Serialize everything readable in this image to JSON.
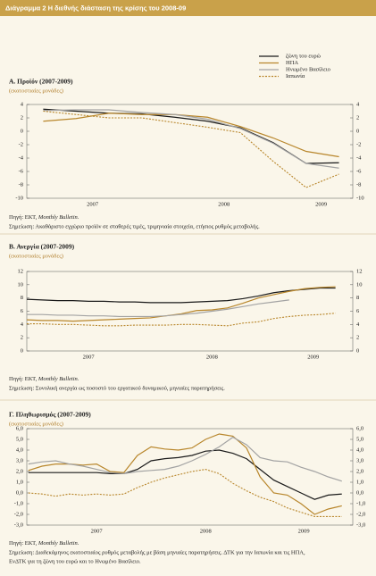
{
  "header": {
    "title": "Διάγραμμα 2  Η διεθνής διάσταση της κρίσης του 2008-09"
  },
  "chart_data": [
    {
      "type": "line",
      "title": "Α. Προϊόν (2007-2009)",
      "subtitle": "(εκατοστιαίες μονάδες)",
      "x": [
        2007.125,
        2007.375,
        2007.625,
        2007.875,
        2008.125,
        2008.375,
        2008.625,
        2008.875,
        2009.125,
        2009.375
      ],
      "xlim": [
        2007,
        2009.48
      ],
      "xticks": [
        {
          "value": 2007.5,
          "label": "2007"
        },
        {
          "value": 2008.5,
          "label": "2008"
        },
        {
          "value": 2009.24,
          "label": "2009"
        }
      ],
      "ylim": [
        -10,
        4
      ],
      "yticks": [
        4,
        2,
        0,
        -2,
        -4,
        -6,
        -8,
        -10
      ],
      "mirror_yticks": true,
      "legend": "top-right",
      "series": [
        {
          "name": "ζώνη του ευρώ",
          "color": "#1a1a1a",
          "dash": "none",
          "values": [
            3.3,
            3.0,
            2.7,
            2.6,
            2.1,
            1.5,
            0.5,
            -1.7,
            -4.8,
            -4.7
          ]
        },
        {
          "name": "ΗΠΑ",
          "color": "#b8862b",
          "dash": "none",
          "values": [
            1.5,
            1.9,
            2.7,
            2.5,
            2.5,
            2.1,
            0.7,
            -1.0,
            -3.0,
            -3.8
          ]
        },
        {
          "name": "Ηνωμένο Βασίλειο",
          "color": "#a3a3a3",
          "dash": "none",
          "values": [
            3.1,
            3.2,
            3.2,
            2.8,
            2.5,
            1.8,
            0.4,
            -1.8,
            -4.8,
            -5.5
          ]
        },
        {
          "name": "Ιαπωνία",
          "color": "#b8862b",
          "dash": "2,1.5",
          "values": [
            3.0,
            2.5,
            2.0,
            2.0,
            1.3,
            0.6,
            -0.2,
            -4.5,
            -8.4,
            -6.4
          ]
        }
      ],
      "source": {
        "prefix": "Πηγή: ΕΚΤ,",
        "title": "Monthly Bulletin."
      },
      "note": [
        "Σημείωση: Ακαθάριστο εγχώριο προϊόν σε σταθερές τιμές, τριμηνιαία στοιχεία, ετήσιος ρυθμός μεταβολής."
      ]
    },
    {
      "type": "line",
      "title": "Β. Ανεργία (2007-2009)",
      "subtitle": "(εκατοστιαίες μονάδες)",
      "x": [
        2007,
        2007.125,
        2007.25,
        2007.375,
        2007.5,
        2007.625,
        2007.75,
        2007.875,
        2008,
        2008.125,
        2008.25,
        2008.375,
        2008.5,
        2008.625,
        2008.75,
        2008.875,
        2009,
        2009.125,
        2009.25,
        2009.375,
        2009.5
      ],
      "xlim": [
        2007,
        2009.64
      ],
      "xticks": [
        {
          "value": 2007.5,
          "label": "2007"
        },
        {
          "value": 2008.5,
          "label": "2008"
        },
        {
          "value": 2009.32,
          "label": "2009"
        }
      ],
      "ylim": [
        0,
        12
      ],
      "yticks": [
        12,
        10,
        8,
        6,
        4,
        2,
        0
      ],
      "mirror_yticks": true,
      "series": [
        {
          "color": "#1a1a1a",
          "dash": "none",
          "values": [
            7.8,
            7.7,
            7.6,
            7.6,
            7.5,
            7.5,
            7.4,
            7.4,
            7.3,
            7.3,
            7.3,
            7.4,
            7.5,
            7.6,
            7.9,
            8.3,
            8.8,
            9.1,
            9.3,
            9.5,
            9.5
          ]
        },
        {
          "color": "#b8862b",
          "dash": "none",
          "values": [
            4.7,
            4.6,
            4.6,
            4.5,
            4.6,
            4.7,
            4.8,
            4.9,
            5.0,
            5.3,
            5.6,
            6.1,
            6.2,
            6.5,
            7.2,
            8.0,
            8.5,
            9.0,
            9.4,
            9.6,
            9.7
          ]
        },
        {
          "color": "#a3a3a3",
          "dash": "none",
          "values": [
            5.5,
            5.5,
            5.4,
            5.4,
            5.3,
            5.3,
            5.2,
            5.2,
            5.2,
            5.3,
            5.5,
            5.7,
            6.0,
            6.3,
            6.7,
            7.1,
            7.4,
            7.7,
            null,
            null,
            null
          ]
        },
        {
          "color": "#b8862b",
          "dash": "2,1.5",
          "values": [
            4.1,
            4.1,
            4.0,
            4.0,
            3.9,
            3.8,
            3.8,
            3.9,
            3.9,
            3.9,
            4.0,
            4.0,
            3.9,
            3.8,
            4.2,
            4.4,
            4.9,
            5.2,
            5.4,
            5.5,
            5.7
          ]
        }
      ],
      "source": {
        "prefix": "Πηγή: ΕΚΤ,",
        "title": "Monthly Bulletin."
      },
      "note": [
        "Σημείωση: Συνολική ανεργία ως ποσοστό του εργατικού δυναμικού, μηνιαίες παρατηρήσεις."
      ]
    },
    {
      "type": "line",
      "title": "Γ. Πληθωρισμός (2007-2009)",
      "subtitle": "(εκατοστιαίες μονάδες)",
      "x": [
        2006.875,
        2007,
        2007.125,
        2007.25,
        2007.375,
        2007.5,
        2007.625,
        2007.75,
        2007.875,
        2008,
        2008.125,
        2008.25,
        2008.375,
        2008.5,
        2008.625,
        2008.75,
        2008.875,
        2009,
        2009.125,
        2009.25,
        2009.375,
        2009.5,
        2009.625,
        2009.75
      ],
      "xlim": [
        2006.86,
        2009.85
      ],
      "xticks": [
        {
          "value": 2007.5,
          "label": "2007"
        },
        {
          "value": 2008.5,
          "label": "2008"
        },
        {
          "value": 2009.4,
          "label": "2009"
        }
      ],
      "ylim": [
        -3,
        6
      ],
      "yticks": [
        {
          "value": 6,
          "label": "6,0"
        },
        {
          "value": 5,
          "label": "5,0"
        },
        {
          "value": 4,
          "label": "4,0"
        },
        {
          "value": 3,
          "label": "3,0"
        },
        {
          "value": 2,
          "label": "2,0"
        },
        {
          "value": 1,
          "label": "1,0"
        },
        {
          "value": 0,
          "label": "0,0"
        },
        {
          "value": -1,
          "label": "-1,0"
        },
        {
          "value": -2,
          "label": "-2,0"
        },
        {
          "value": -3,
          "label": "-3,0"
        }
      ],
      "mirror_yticks": true,
      "series": [
        {
          "color": "#1a1a1a",
          "dash": "none",
          "values": [
            1.9,
            1.9,
            1.9,
            1.9,
            1.9,
            1.9,
            1.8,
            1.8,
            2.2,
            3.0,
            3.2,
            3.3,
            3.5,
            3.9,
            4.0,
            3.7,
            3.2,
            2.2,
            1.2,
            0.6,
            0.0,
            -0.6,
            -0.2,
            -0.1
          ]
        },
        {
          "color": "#b8862b",
          "dash": "none",
          "values": [
            2.1,
            2.5,
            2.7,
            2.7,
            2.6,
            2.7,
            2.0,
            1.9,
            3.5,
            4.3,
            4.1,
            4.0,
            4.2,
            5.0,
            5.5,
            5.3,
            4.2,
            1.5,
            0.0,
            -0.2,
            -1.0,
            -2.0,
            -1.5,
            -1.2
          ]
        },
        {
          "color": "#a3a3a3",
          "dash": "none",
          "values": [
            2.7,
            2.9,
            3.0,
            2.7,
            2.5,
            2.2,
            1.9,
            1.8,
            2.0,
            2.1,
            2.2,
            2.5,
            3.0,
            3.6,
            4.3,
            5.2,
            4.5,
            3.3,
            3.0,
            2.9,
            2.4,
            2.0,
            1.5,
            1.1
          ]
        },
        {
          "color": "#b8862b",
          "dash": "2,1.5",
          "values": [
            0.0,
            -0.1,
            -0.3,
            -0.1,
            -0.2,
            -0.1,
            -0.2,
            -0.1,
            0.5,
            1.0,
            1.4,
            1.7,
            2.0,
            2.2,
            1.8,
            0.9,
            0.2,
            -0.4,
            -0.8,
            -1.4,
            -1.8,
            -2.2,
            -2.2,
            -2.2
          ]
        }
      ],
      "source": {
        "prefix": "Πηγή: ΕΚΤ,",
        "title": "Monthly Bulletin."
      },
      "note": [
        "Σημείωση: Διαδεκάμηνος εκατοστιαίος ρυθμός μεταβολής με βάση μηνιαίες παρατηρήσεις. ΔΤΚ για την Ιαπωνία και τις ΗΠΑ,",
        "ΕνΔΤΚ για τη ζώνη του ευρώ και το Ηνωμένο Βασίλειο."
      ]
    }
  ]
}
